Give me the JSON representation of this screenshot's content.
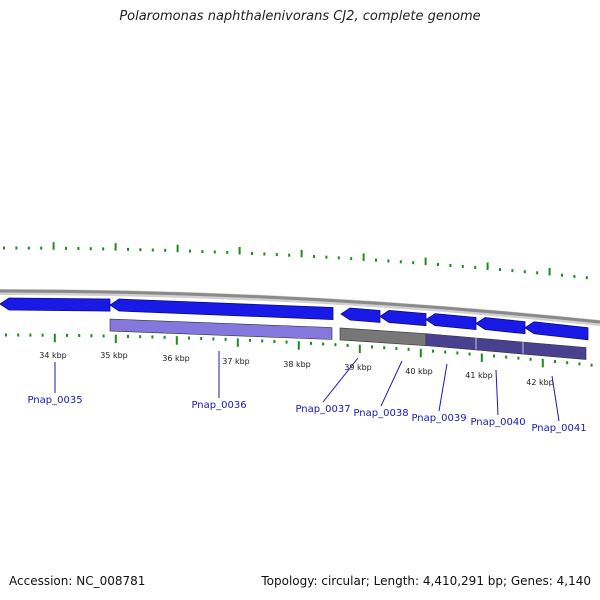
{
  "title": "Polaromonas naphthalenivorans CJ2, complete genome",
  "footer": {
    "accession": "Accession: NC_008781",
    "topology": "Topology: circular; Length: 4,410,291 bp; Genes: 4,140"
  },
  "colors": {
    "backbone": "#8a8a8a",
    "gene_blue": "#1a1ae6",
    "tick_green": "#1f8a1f",
    "label_blue": "#1a1ab4",
    "cds_lavender": "#8577dd",
    "cds_gray": "#777777",
    "cds_darkpurple": "#4a4090"
  },
  "ruler": {
    "labels": [
      "34 kbp",
      "35 kbp",
      "36 kbp",
      "37 kbp",
      "38 kbp",
      "39 kbp",
      "40 kbp",
      "41 kbp",
      "42 kbp"
    ]
  },
  "genes": [
    {
      "name": "Pnap_0035",
      "strand": "-"
    },
    {
      "name": "Pnap_0036",
      "strand": "-"
    },
    {
      "name": "Pnap_0037",
      "strand": "-"
    },
    {
      "name": "Pnap_0038",
      "strand": "-"
    },
    {
      "name": "Pnap_0039",
      "strand": "-"
    },
    {
      "name": "Pnap_0040",
      "strand": "-"
    },
    {
      "name": "Pnap_0041",
      "strand": "-"
    }
  ]
}
